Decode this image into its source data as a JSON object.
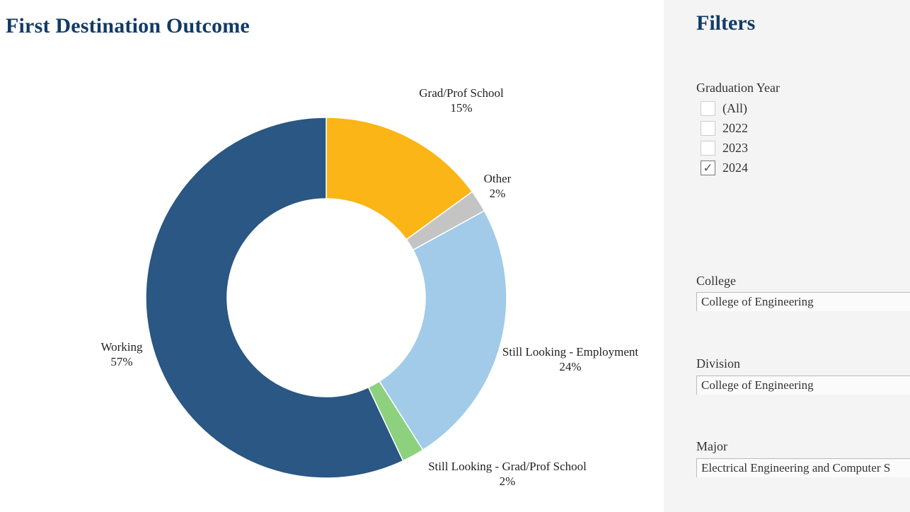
{
  "title": "First Destination Outcome",
  "chart_data": {
    "type": "pie",
    "title": "First Destination Outcome",
    "donut": true,
    "slices": [
      {
        "label": "Grad/Prof School",
        "value": 15,
        "pct_label": "15%",
        "color": "#fbb516"
      },
      {
        "label": "Other",
        "value": 2,
        "pct_label": "2%",
        "color": "#c4c4c4"
      },
      {
        "label": "Still Looking - Employment",
        "value": 24,
        "pct_label": "24%",
        "color": "#a1cbe8"
      },
      {
        "label": "Still Looking - Grad/Prof School",
        "value": 2,
        "pct_label": "2%",
        "color": "#8dd17e"
      },
      {
        "label": "Working",
        "value": 57,
        "pct_label": "57%",
        "color": "#2a5783"
      }
    ]
  },
  "filters": {
    "title": "Filters",
    "graduation_year": {
      "label": "Graduation Year",
      "options": [
        {
          "label": "(All)",
          "checked": false
        },
        {
          "label": "2022",
          "checked": false
        },
        {
          "label": "2023",
          "checked": false
        },
        {
          "label": "2024",
          "checked": true
        }
      ]
    },
    "college": {
      "label": "College",
      "value": "College of Engineering"
    },
    "division": {
      "label": "Division",
      "value": "College of Engineering"
    },
    "major": {
      "label": "Major",
      "value": "Electrical Engineering and Computer S"
    }
  }
}
